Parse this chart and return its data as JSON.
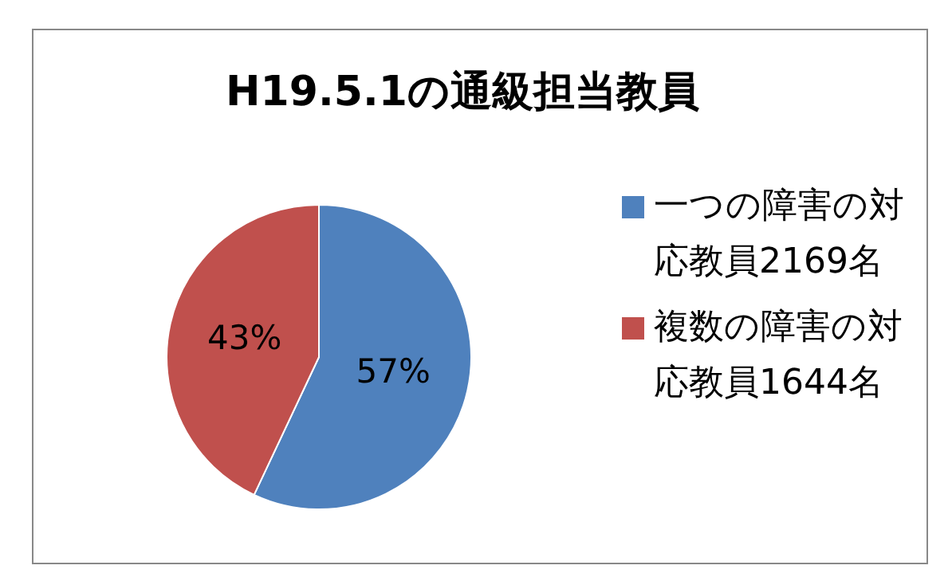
{
  "chart_data": {
    "type": "pie",
    "title": "H19.5.1の通級担当教員",
    "categories": [
      "一つの障害の対応教員2169名",
      "複数の障害の対応教員1644名"
    ],
    "values": [
      57,
      43
    ],
    "colors": [
      "#4f81bd",
      "#c0504d"
    ],
    "value_labels": [
      "57%",
      "43%"
    ],
    "legend": "right"
  }
}
